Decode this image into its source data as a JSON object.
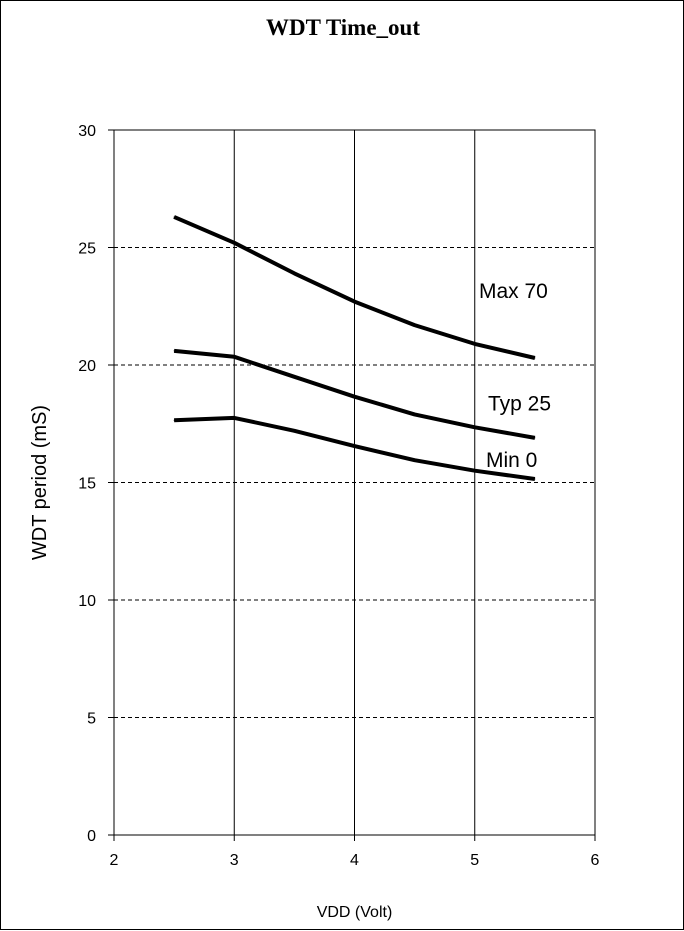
{
  "chart_data": {
    "type": "line",
    "title": "WDT Time_out",
    "xlabel": "VDD  (Volt)",
    "ylabel": "WDT period (mS)",
    "xlim": [
      2,
      6
    ],
    "ylim": [
      0,
      30
    ],
    "x_ticks": [
      "2",
      "3",
      "4",
      "5",
      "6"
    ],
    "y_ticks": [
      "0",
      "5",
      "10",
      "15",
      "20",
      "25",
      "30"
    ],
    "grid": {
      "x": "solid",
      "y": "dashed"
    },
    "x": [
      2.5,
      3,
      3.5,
      4,
      4.5,
      5,
      5.5
    ],
    "series": [
      {
        "name": "Max 70",
        "values": [
          26.3,
          25.2,
          23.9,
          22.7,
          21.7,
          20.9,
          20.3
        ]
      },
      {
        "name": "Typ 25",
        "values": [
          20.6,
          20.35,
          19.5,
          18.65,
          17.9,
          17.35,
          16.9
        ]
      },
      {
        "name": "Min 0",
        "values": [
          17.65,
          17.75,
          17.2,
          16.55,
          15.95,
          15.5,
          15.15
        ]
      }
    ]
  }
}
